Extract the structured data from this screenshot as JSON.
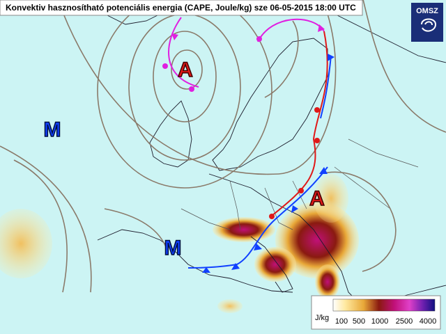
{
  "header": {
    "title": "Konvektiv hasznosítható potenciális energia (CAPE, Joule/kg) sze 06-05-2015 18:00 UTC"
  },
  "logo": {
    "text": "OMSZ"
  },
  "pressure_centers": [
    {
      "label": "A"
    },
    {
      "label": "A"
    },
    {
      "label": "M"
    },
    {
      "label": "M"
    }
  ],
  "legend": {
    "unit": "J/kg",
    "ticks": [
      100,
      500,
      1000,
      2500,
      4000
    ]
  }
}
